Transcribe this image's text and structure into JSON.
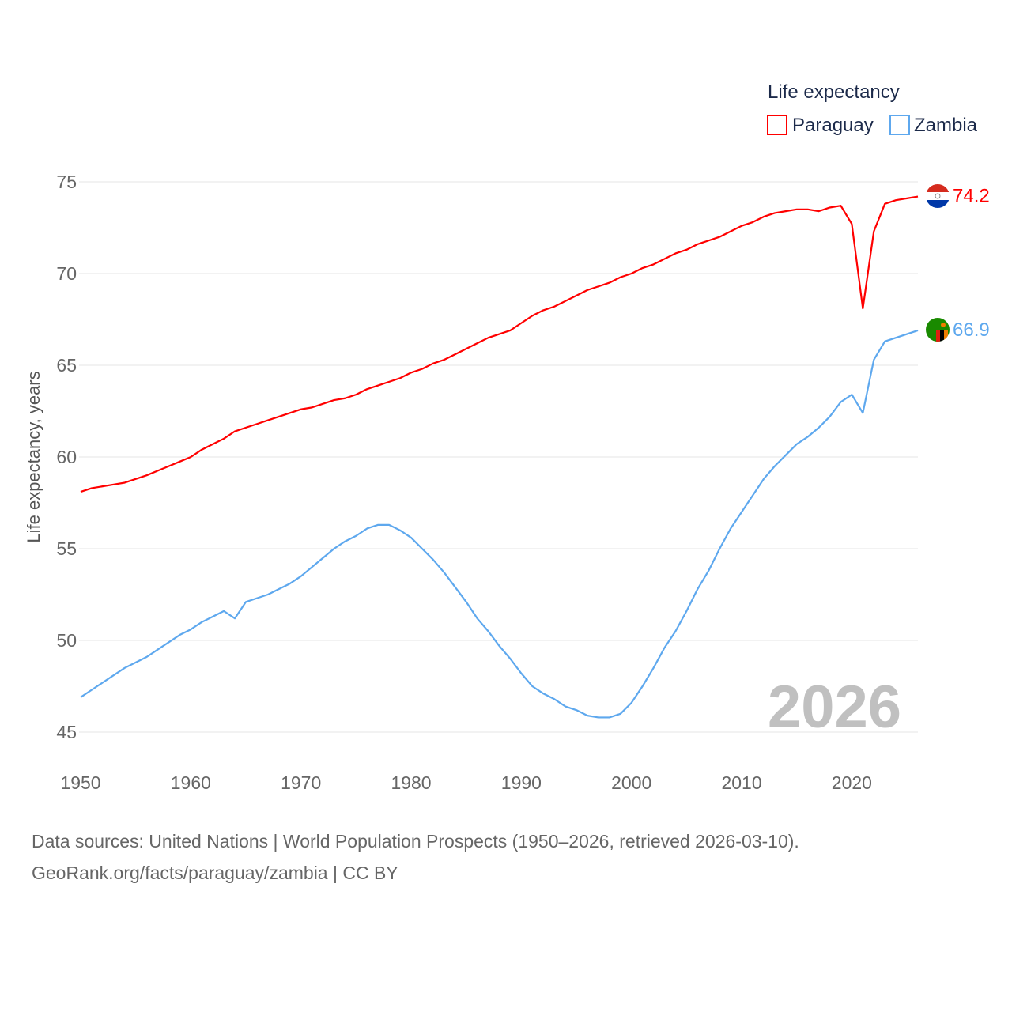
{
  "chart_data": {
    "type": "line",
    "title": "",
    "xlabel": "",
    "ylabel": "Life expectancy, years",
    "xlim": [
      1950,
      2026
    ],
    "ylim": [
      45,
      75
    ],
    "x_ticks": [
      1950,
      1960,
      1970,
      1980,
      1990,
      2000,
      2010,
      2020
    ],
    "y_ticks": [
      45,
      50,
      55,
      60,
      65,
      70,
      75
    ],
    "grid": true,
    "legend_title": "Life expectancy",
    "legend_position": "top-right",
    "year_watermark": "2026",
    "x_start": 1950,
    "series": [
      {
        "name": "Paraguay",
        "color": "#ff0000",
        "end_label": "74.2",
        "values": [
          58.1,
          58.3,
          58.4,
          58.5,
          58.6,
          58.8,
          59.0,
          59.25,
          59.5,
          59.75,
          60.0,
          60.4,
          60.7,
          61.0,
          61.4,
          61.6,
          61.8,
          62.0,
          62.2,
          62.4,
          62.6,
          62.7,
          62.9,
          63.1,
          63.2,
          63.4,
          63.7,
          63.9,
          64.1,
          64.3,
          64.6,
          64.8,
          65.1,
          65.3,
          65.6,
          65.9,
          66.2,
          66.5,
          66.7,
          66.9,
          67.3,
          67.7,
          68.0,
          68.2,
          68.5,
          68.8,
          69.1,
          69.3,
          69.5,
          69.8,
          70.0,
          70.3,
          70.5,
          70.8,
          71.1,
          71.3,
          71.6,
          71.8,
          72.0,
          72.3,
          72.6,
          72.8,
          73.1,
          73.3,
          73.4,
          73.5,
          73.5,
          73.4,
          73.6,
          73.7,
          72.7,
          68.1,
          72.3,
          73.8,
          74.0,
          74.1,
          74.2
        ]
      },
      {
        "name": "Zambia",
        "color": "#5ea8ee",
        "end_label": "66.9",
        "values": [
          46.9,
          47.3,
          47.7,
          48.1,
          48.5,
          48.8,
          49.1,
          49.5,
          49.9,
          50.3,
          50.6,
          51.0,
          51.3,
          51.6,
          51.2,
          52.1,
          52.3,
          52.5,
          52.8,
          53.1,
          53.5,
          54.0,
          54.5,
          55.0,
          55.4,
          55.7,
          56.1,
          56.3,
          56.3,
          56.0,
          55.6,
          55.0,
          54.4,
          53.7,
          52.9,
          52.1,
          51.2,
          50.5,
          49.7,
          49.0,
          48.2,
          47.5,
          47.1,
          46.8,
          46.4,
          46.2,
          45.9,
          45.8,
          45.8,
          46.0,
          46.6,
          47.5,
          48.5,
          49.6,
          50.5,
          51.6,
          52.8,
          53.8,
          55.0,
          56.1,
          57.0,
          57.9,
          58.8,
          59.5,
          60.1,
          60.7,
          61.1,
          61.6,
          62.2,
          63.0,
          63.4,
          62.4,
          65.3,
          66.3,
          66.5,
          66.7,
          66.9
        ]
      }
    ]
  },
  "footer": {
    "line1": "Data sources: United Nations | World Population Prospects (1950–2026, retrieved 2026-03-10).",
    "line2": "GeoRank.org/facts/paraguay/zambia | CC BY"
  }
}
